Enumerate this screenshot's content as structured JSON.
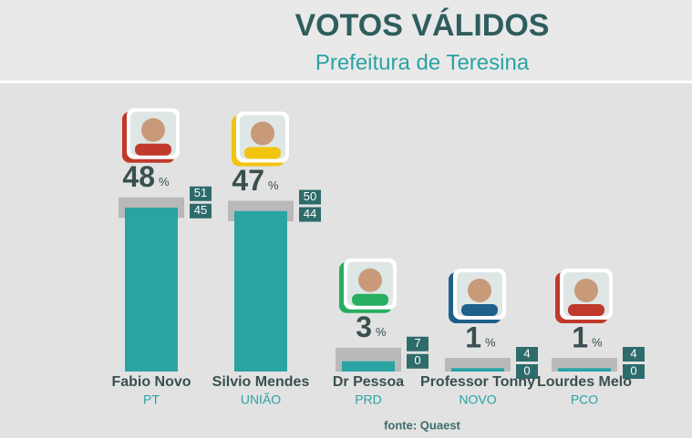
{
  "chart_data": {
    "type": "bar",
    "title": "VOTOS VÁLIDOS",
    "subtitle": "Prefeitura de Teresina",
    "source": "fonte: Quaest",
    "unit": "%",
    "categories": [
      "Fabio Novo",
      "Silvio Mendes",
      "Dr Pessoa",
      "Professor Tonny",
      "Lourdes Melo"
    ],
    "parties": [
      "PT",
      "UNIÃO",
      "PRD",
      "NOVO",
      "PCO"
    ],
    "values": [
      48,
      47,
      3,
      1,
      1
    ],
    "ci_high": [
      51,
      50,
      7,
      4,
      4
    ],
    "ci_low": [
      45,
      44,
      0,
      0,
      0
    ],
    "color": "#2aa3a3",
    "ci_color": "#b9b9b9"
  }
}
